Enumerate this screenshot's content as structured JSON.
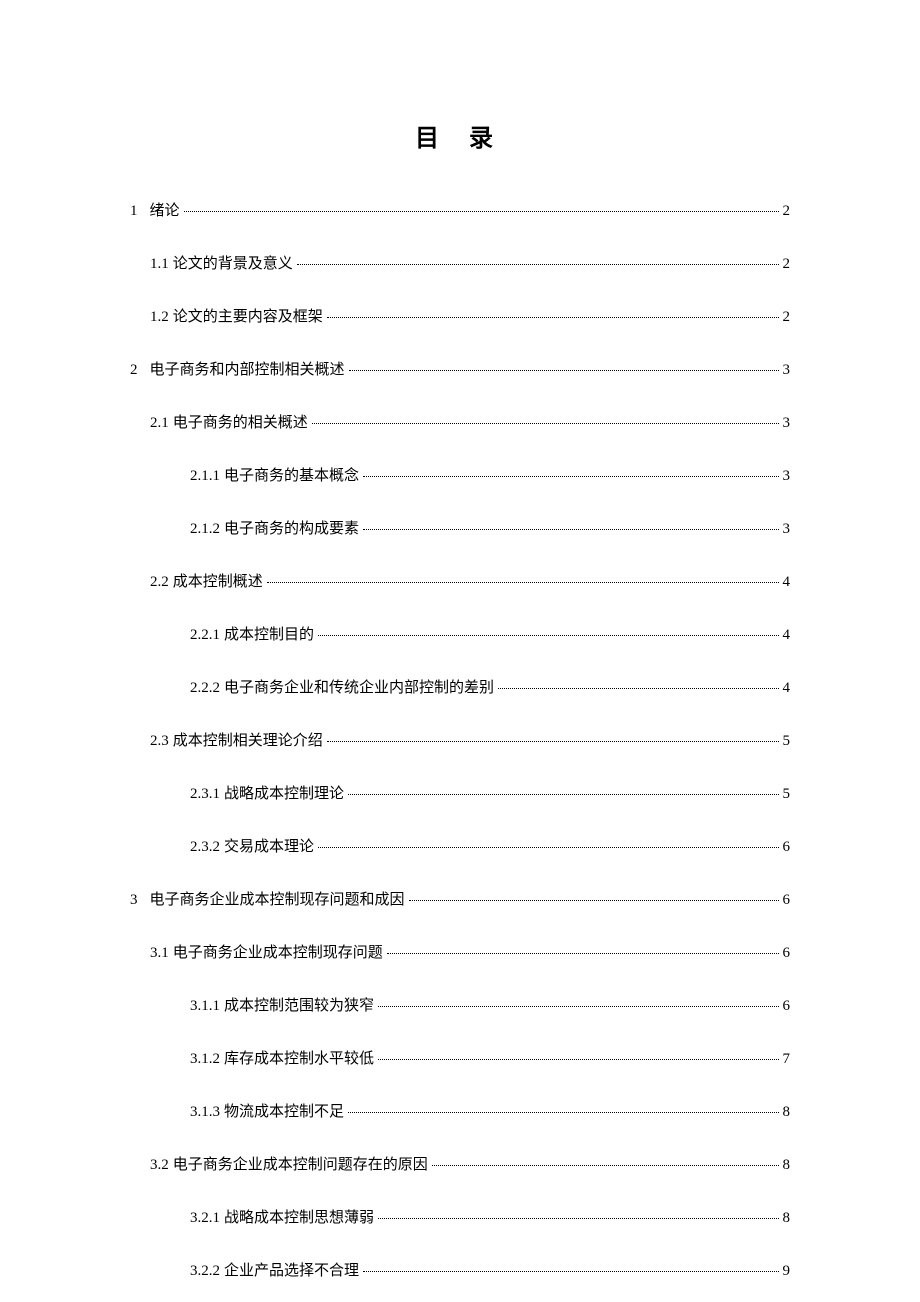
{
  "title": "目 录",
  "entries": [
    {
      "level": 0,
      "number": "1",
      "label": "绪论",
      "page": "2"
    },
    {
      "level": 1,
      "number": "1.1",
      "label": "论文的背景及意义",
      "page": "2"
    },
    {
      "level": 1,
      "number": "1.2",
      "label": "论文的主要内容及框架",
      "page": "2"
    },
    {
      "level": 0,
      "number": "2",
      "label": "电子商务和内部控制相关概述",
      "page": "3"
    },
    {
      "level": 1,
      "number": "2.1",
      "label": "电子商务的相关概述",
      "page": "3"
    },
    {
      "level": 2,
      "number": "2.1.1",
      "label": "电子商务的基本概念",
      "page": "3"
    },
    {
      "level": 2,
      "number": "2.1.2",
      "label": "电子商务的构成要素",
      "page": "3"
    },
    {
      "level": 1,
      "number": "2.2",
      "label": "成本控制概述",
      "page": "4"
    },
    {
      "level": 2,
      "number": "2.2.1",
      "label": "成本控制目的",
      "page": "4"
    },
    {
      "level": 2,
      "number": "2.2.2",
      "label": "电子商务企业和传统企业内部控制的差别",
      "page": "4"
    },
    {
      "level": 1,
      "number": "2.3",
      "label": "成本控制相关理论介绍",
      "page": "5"
    },
    {
      "level": 2,
      "number": "2.3.1",
      "label": "战略成本控制理论",
      "page": "5"
    },
    {
      "level": 2,
      "number": "2.3.2",
      "label": "交易成本理论",
      "page": "6"
    },
    {
      "level": 0,
      "number": "3",
      "label": "电子商务企业成本控制现存问题和成因",
      "page": "6"
    },
    {
      "level": 1,
      "number": "3.1",
      "label": "电子商务企业成本控制现存问题",
      "page": "6"
    },
    {
      "level": 2,
      "number": "3.1.1",
      "label": "成本控制范围较为狭窄",
      "page": "6"
    },
    {
      "level": 2,
      "number": "3.1.2",
      "label": "库存成本控制水平较低",
      "page": "7"
    },
    {
      "level": 2,
      "number": "3.1.3",
      "label": "物流成本控制不足",
      "page": "8"
    },
    {
      "level": 1,
      "number": "3.2",
      "label": "电子商务企业成本控制问题存在的原因",
      "page": "8"
    },
    {
      "level": 2,
      "number": "3.2.1",
      "label": "战略成本控制思想薄弱",
      "page": "8"
    },
    {
      "level": 2,
      "number": "3.2.2",
      "label": "企业产品选择不合理",
      "page": "9"
    }
  ]
}
